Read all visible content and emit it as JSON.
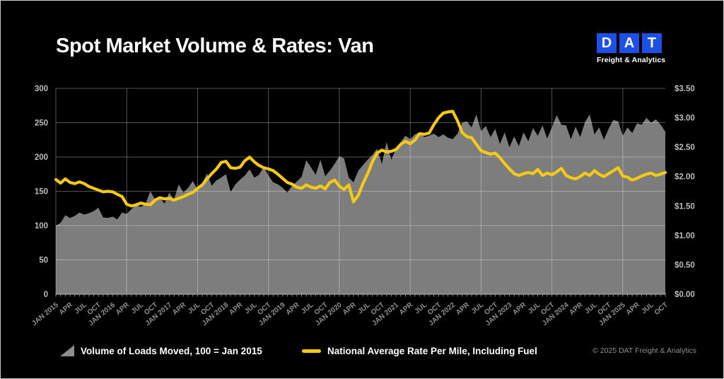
{
  "header": {
    "title": "Spot Market Volume & Rates: Van",
    "logo": {
      "letters": [
        "D",
        "A",
        "T"
      ],
      "tagline": "Freight & Analytics",
      "brand_color": "#1d50e6"
    }
  },
  "legend": {
    "items": [
      {
        "label": "Volume of Loads Moved, 100 = Jan 2015",
        "icon": "gray-triangle",
        "color": "#8e8e8e"
      },
      {
        "label": "National Average Rate Per Mile, Including Fuel",
        "icon": "yellow-dash",
        "color": "#f6c915"
      }
    ]
  },
  "footer": {
    "copyright": "© 2025 DAT Freight & Analytics"
  },
  "chart_data": {
    "type": "area+line",
    "x_start": "Jan 2015",
    "x_end": "Oct 2025",
    "months": 130,
    "x_tick_labels": [
      "JAN 2015",
      "APR",
      "JUL",
      "OCT",
      "JAN 2016",
      "APR",
      "JUL",
      "OCT",
      "JAN 2017",
      "APR",
      "JUL",
      "OCT",
      "JAN 2018",
      "APR",
      "JUL",
      "OCT",
      "JAN 2019",
      "APR",
      "JUL",
      "OCT",
      "JAN 2020",
      "APR",
      "JUL",
      "OCT",
      "JAN 2021",
      "APR",
      "JUL",
      "OCT",
      "JAN 2022",
      "APR",
      "JUL",
      "OCT",
      "JAN 2023",
      "APR",
      "JUL",
      "OCT",
      "JAN 2024",
      "APR",
      "JUL",
      "OCT",
      "JAN 2025",
      "APR",
      "JUL",
      "OCT"
    ],
    "left_axis": {
      "min": 0,
      "max": 300,
      "step": 50,
      "labels": [
        "0",
        "50",
        "100",
        "150",
        "200",
        "250",
        "300"
      ]
    },
    "right_axis": {
      "min": 0,
      "max": 3.5,
      "step": 0.5,
      "labels": [
        "$0.00",
        "$0.50",
        "$1.00",
        "$1.50",
        "$2.00",
        "$2.50",
        "$3.00",
        "$3.50"
      ]
    },
    "grid": {
      "horizontal": true,
      "vertical_every_months": 15,
      "color": "rgba(255,255,255,0.32)"
    },
    "series": [
      {
        "name": "Volume of Loads Moved, 100 = Jan 2015",
        "type": "area",
        "axis": "left",
        "color": "#7d7d7d",
        "values": [
          100,
          104,
          115,
          111,
          114,
          119,
          116,
          118,
          121,
          126,
          112,
          111,
          113,
          109,
          119,
          117,
          124,
          130,
          127,
          132,
          150,
          138,
          141,
          132,
          148,
          138,
          160,
          148,
          155,
          165,
          152,
          162,
          176,
          158,
          166,
          170,
          175,
          149,
          160,
          167,
          173,
          182,
          170,
          174,
          186,
          173,
          163,
          160,
          155,
          148,
          158,
          164,
          171,
          195,
          185,
          174,
          196,
          172,
          180,
          190,
          201,
          198,
          170,
          163,
          180,
          188,
          196,
          203,
          212,
          190,
          222,
          196,
          212,
          222,
          231,
          226,
          233,
          236,
          229,
          231,
          234,
          229,
          233,
          228,
          226,
          234,
          250,
          252,
          243,
          262,
          238,
          245,
          229,
          241,
          219,
          236,
          214,
          230,
          216,
          236,
          223,
          242,
          231,
          246,
          227,
          243,
          261,
          247,
          246,
          226,
          244,
          229,
          251,
          262,
          233,
          243,
          225,
          241,
          254,
          252,
          231,
          243,
          235,
          249,
          247,
          257,
          250,
          255,
          247,
          237
        ]
      },
      {
        "name": "National Average Rate Per Mile, Including Fuel",
        "type": "line",
        "axis": "right",
        "color": "#f6c915",
        "values": [
          1.95,
          1.89,
          1.96,
          1.9,
          1.88,
          1.91,
          1.88,
          1.83,
          1.8,
          1.77,
          1.74,
          1.75,
          1.74,
          1.7,
          1.66,
          1.53,
          1.5,
          1.52,
          1.55,
          1.53,
          1.52,
          1.6,
          1.64,
          1.62,
          1.63,
          1.6,
          1.63,
          1.66,
          1.7,
          1.73,
          1.8,
          1.86,
          1.96,
          2.05,
          2.13,
          2.24,
          2.26,
          2.15,
          2.14,
          2.16,
          2.27,
          2.33,
          2.25,
          2.19,
          2.15,
          2.13,
          2.1,
          2.04,
          1.97,
          1.9,
          1.87,
          1.82,
          1.8,
          1.86,
          1.82,
          1.8,
          1.84,
          1.79,
          1.9,
          1.94,
          1.84,
          1.78,
          1.86,
          1.57,
          1.68,
          1.88,
          2.05,
          2.25,
          2.4,
          2.45,
          2.42,
          2.43,
          2.46,
          2.55,
          2.6,
          2.56,
          2.62,
          2.73,
          2.72,
          2.74,
          2.88,
          3.0,
          3.08,
          3.1,
          3.11,
          2.95,
          2.75,
          2.68,
          2.66,
          2.55,
          2.44,
          2.41,
          2.38,
          2.4,
          2.32,
          2.22,
          2.13,
          2.05,
          2.02,
          2.05,
          2.07,
          2.05,
          2.12,
          2.02,
          2.06,
          2.03,
          2.08,
          2.14,
          2.02,
          1.98,
          1.96,
          2.0,
          2.06,
          2.02,
          2.1,
          2.04,
          2.0,
          2.05,
          2.1,
          2.15,
          2.01,
          1.99,
          1.94,
          1.97,
          2.01,
          2.04,
          2.06,
          2.02,
          2.04,
          2.07
        ]
      }
    ]
  }
}
